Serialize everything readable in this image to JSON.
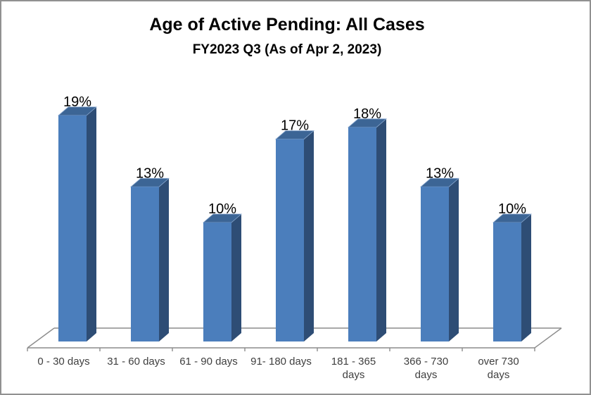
{
  "frame": {
    "background": "#FFFFFF",
    "border_color": "#919191"
  },
  "chart_data": {
    "type": "bar",
    "style": "3d-column",
    "title": "Age of Active Pending: All Cases",
    "subtitle": "FY2023 Q3 (As of Apr 2, 2023)",
    "categories": [
      "0 - 30 days",
      "31 - 60 days",
      "61 - 90 days",
      "91- 180 days",
      "181 - 365\ndays",
      "366 - 730\ndays",
      "over 730\ndays"
    ],
    "values": [
      19,
      13,
      10,
      17,
      18,
      13,
      10
    ],
    "value_labels": [
      "19%",
      "13%",
      "10%",
      "17%",
      "18%",
      "13%",
      "10%"
    ],
    "unit": "%",
    "xlabel": "",
    "ylabel": "",
    "ylim": [
      0,
      20
    ],
    "grid": false,
    "legend_position": "none",
    "colors": {
      "bar_front": "#4B7EBC",
      "bar_side": "#2E4D75",
      "bar_top": "#3C6595",
      "bar_top_edge": "#8AA9D0",
      "axis_line": "#8C8C8C",
      "value_label_color": "#000000",
      "category_label_color": "#3F3F3F"
    }
  }
}
